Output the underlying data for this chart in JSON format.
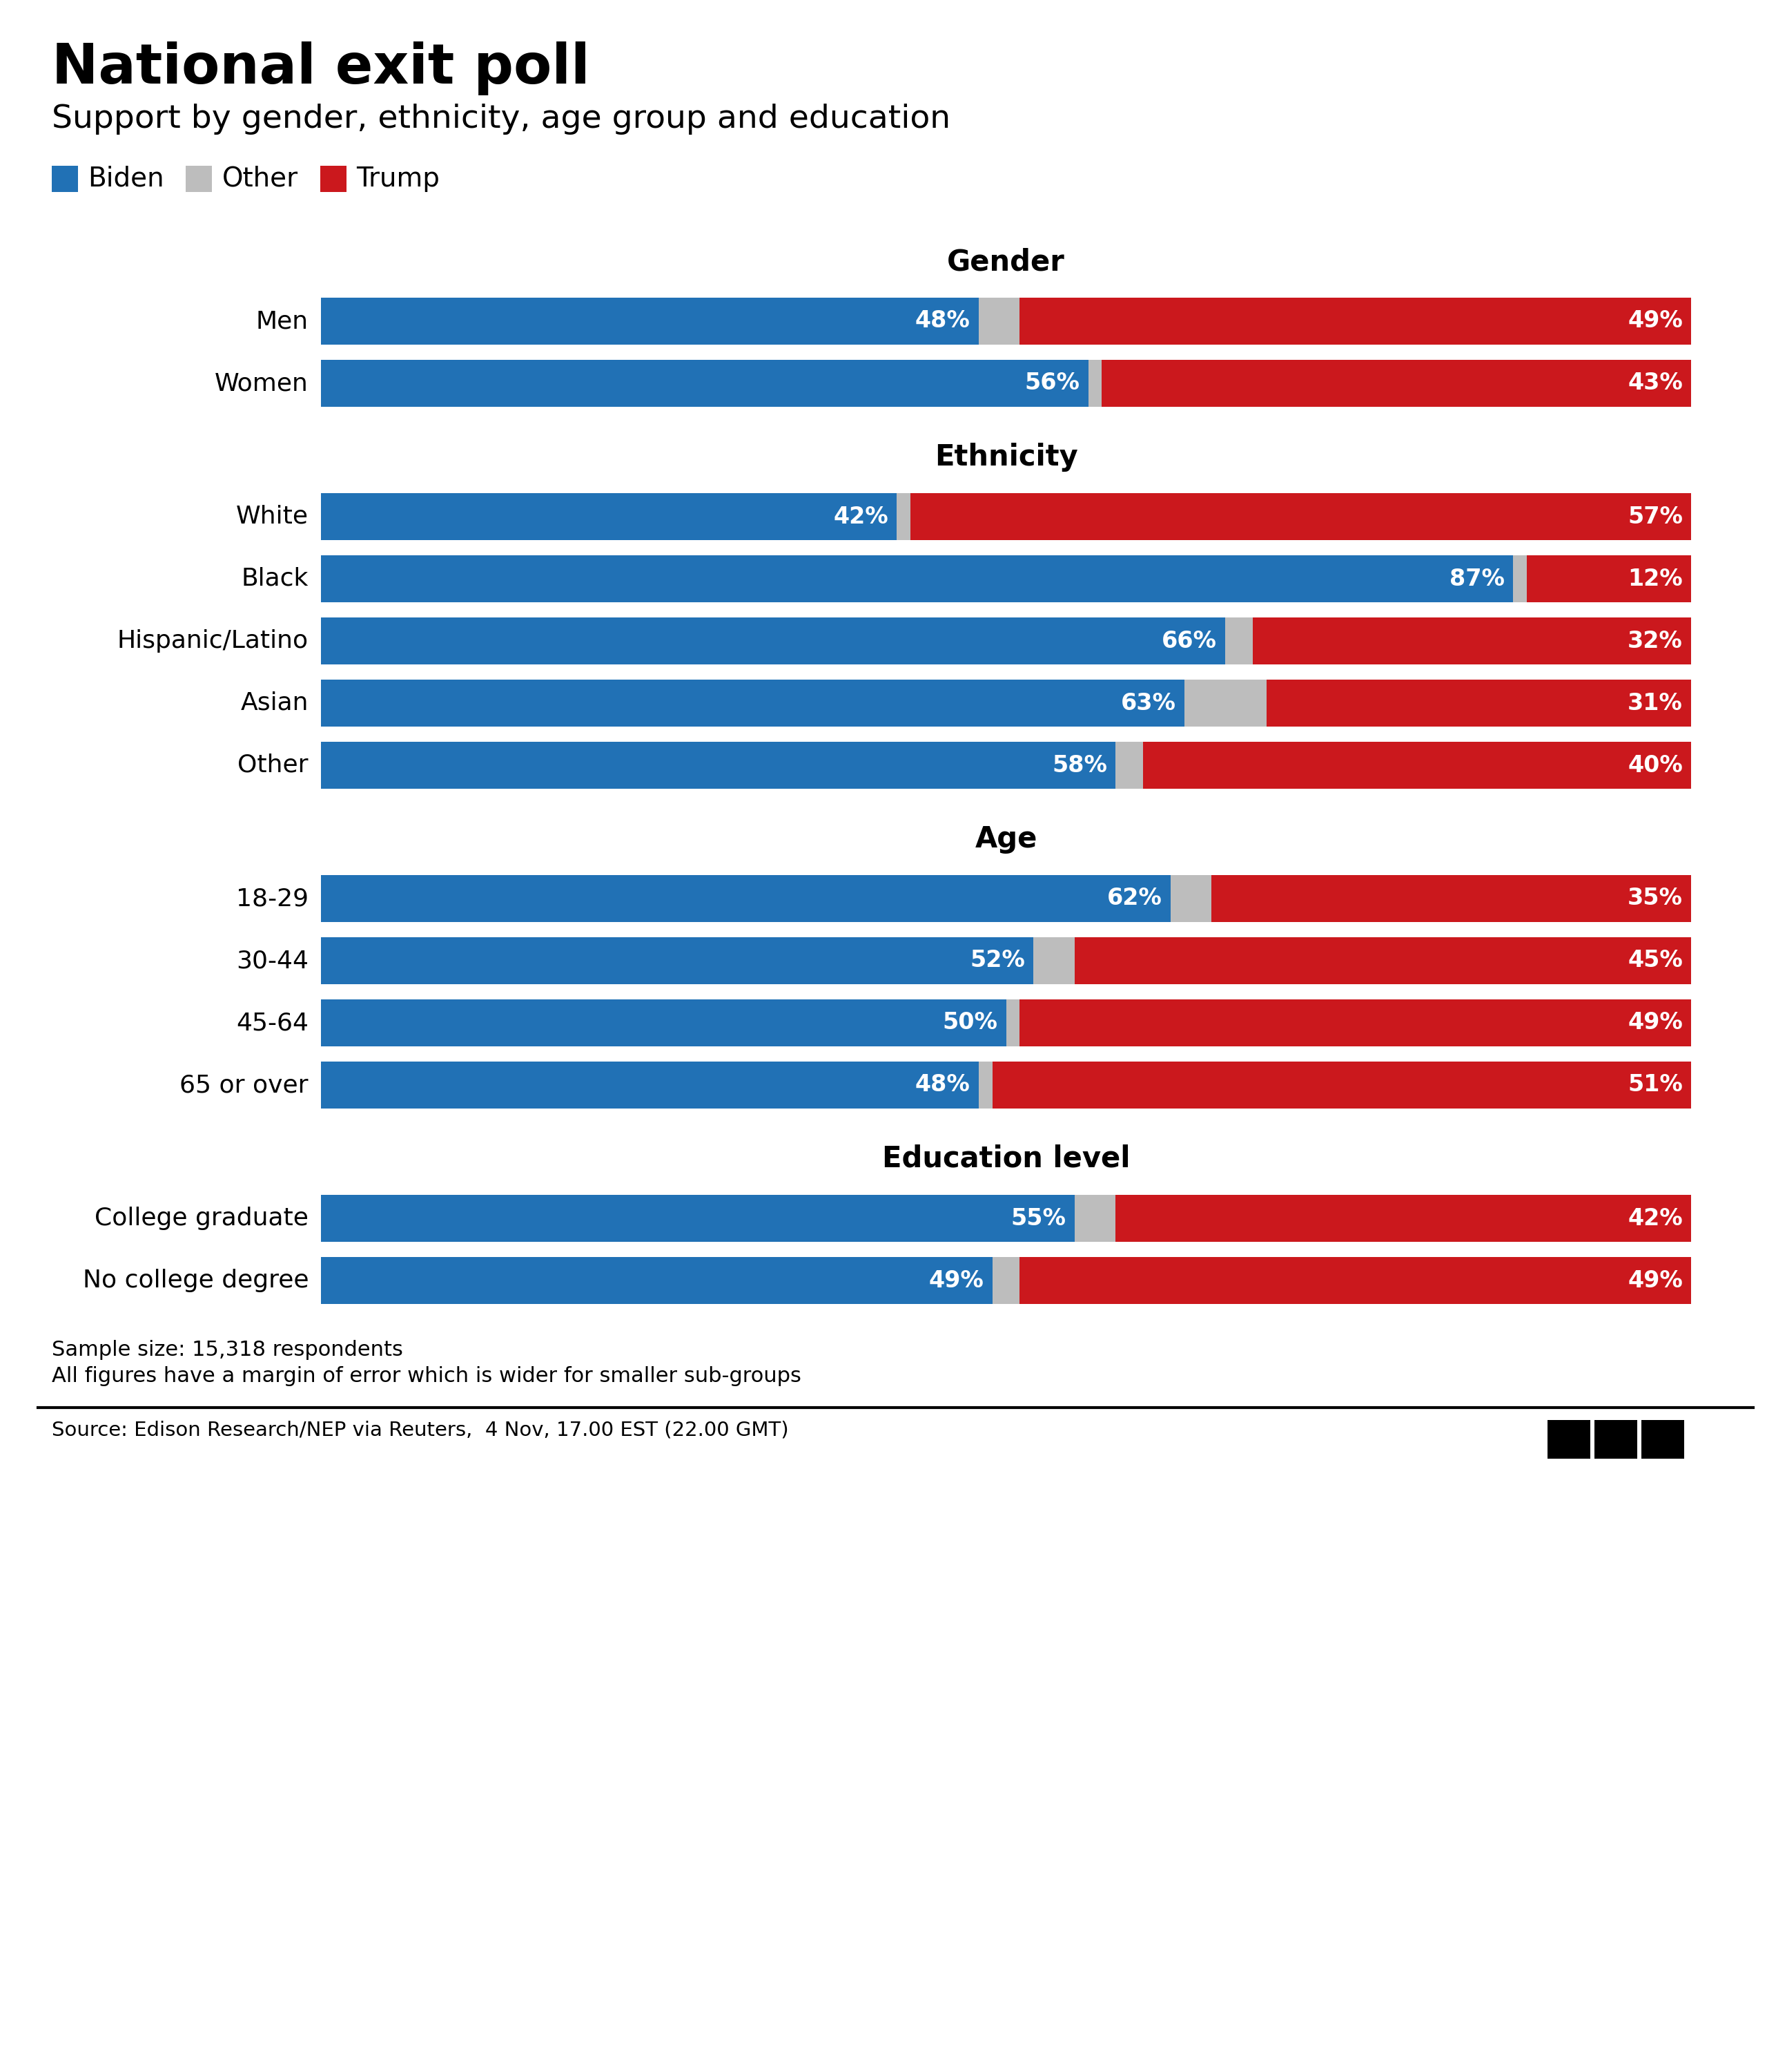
{
  "title": "National exit poll",
  "subtitle": "Support by gender, ethnicity, age group and education",
  "biden_color": "#2171b5",
  "trump_color": "#cb181d",
  "other_color": "#bdbdbd",
  "bg_color": "#ffffff",
  "sections": [
    {
      "title": "Gender",
      "rows": [
        {
          "label": "Men",
          "biden": 48,
          "other": 3,
          "trump": 49
        },
        {
          "label": "Women",
          "biden": 56,
          "other": 1,
          "trump": 43
        }
      ]
    },
    {
      "title": "Ethnicity",
      "rows": [
        {
          "label": "White",
          "biden": 42,
          "other": 1,
          "trump": 57
        },
        {
          "label": "Black",
          "biden": 87,
          "other": 1,
          "trump": 12
        },
        {
          "label": "Hispanic/Latino",
          "biden": 66,
          "other": 2,
          "trump": 32
        },
        {
          "label": "Asian",
          "biden": 63,
          "other": 6,
          "trump": 31
        },
        {
          "label": "Other",
          "biden": 58,
          "other": 2,
          "trump": 40
        }
      ]
    },
    {
      "title": "Age",
      "rows": [
        {
          "label": "18-29",
          "biden": 62,
          "other": 3,
          "trump": 35
        },
        {
          "label": "30-44",
          "biden": 52,
          "other": 3,
          "trump": 45
        },
        {
          "label": "45-64",
          "biden": 50,
          "other": 1,
          "trump": 49
        },
        {
          "label": "65 or over",
          "biden": 48,
          "other": 1,
          "trump": 51
        }
      ]
    },
    {
      "title": "Education level",
      "rows": [
        {
          "label": "College graduate",
          "biden": 55,
          "other": 3,
          "trump": 42
        },
        {
          "label": "No college degree",
          "biden": 49,
          "other": 2,
          "trump": 49
        }
      ]
    }
  ],
  "footnote1": "Sample size: 15,318 respondents",
  "footnote2": "All figures have a margin of error which is wider for smaller sub-groups",
  "source": "Source: Edison Research/NEP via Reuters,  4 Nov, 17.00 EST (22.00 GMT)",
  "title_fontsize": 58,
  "subtitle_fontsize": 34,
  "legend_fontsize": 28,
  "section_title_fontsize": 30,
  "bar_label_fontsize": 26,
  "value_fontsize": 24,
  "footnote_fontsize": 22,
  "source_fontsize": 21
}
